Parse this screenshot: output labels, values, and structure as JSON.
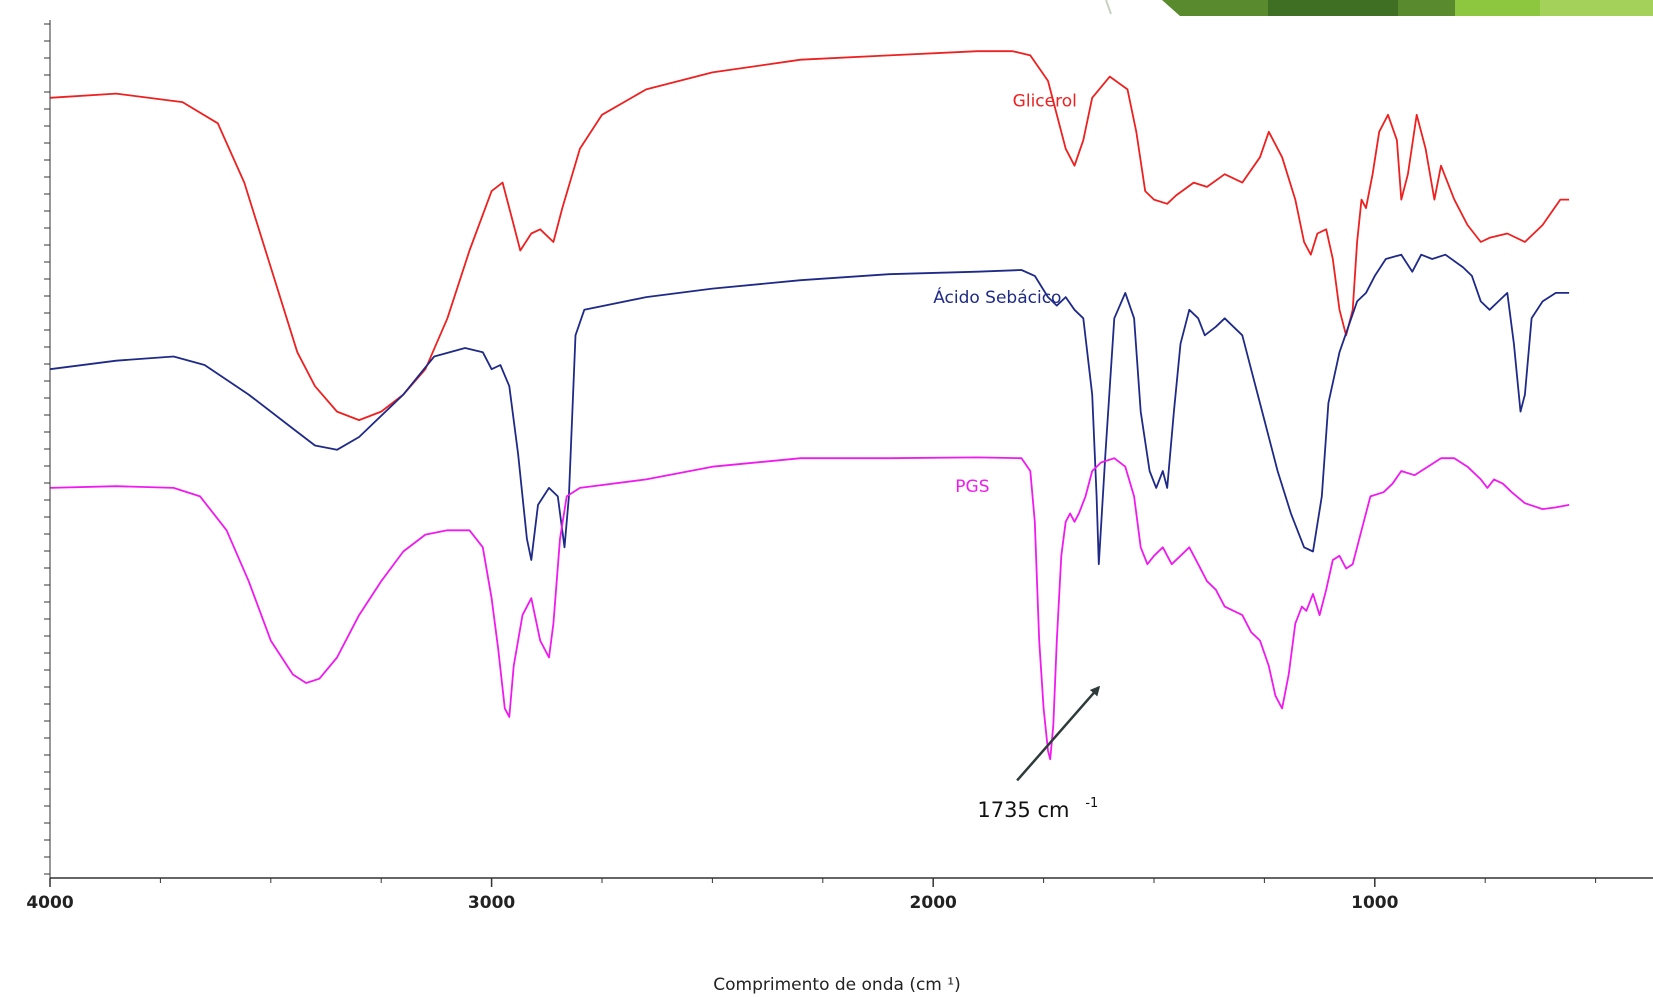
{
  "chart_data": {
    "type": "line",
    "title": "",
    "xlabel": "Comprimento de onda (cm ¹)",
    "ylabel": "",
    "xlim": [
      4000,
      370
    ],
    "x_reversed": true,
    "ylim": [
      0,
      100
    ],
    "grid": false,
    "x_ticks": [
      {
        "value": 4000,
        "label": "4000"
      },
      {
        "value": 3000,
        "label": "3000"
      },
      {
        "value": 2000,
        "label": "2000"
      },
      {
        "value": 1000,
        "label": "1000"
      }
    ],
    "series": [
      {
        "name": "Glicerol",
        "color": "#ee2020",
        "label_at": {
          "x": 1820,
          "y": 91
        },
        "points": [
          [
            4000,
            92
          ],
          [
            3850,
            92.5
          ],
          [
            3700,
            91.5
          ],
          [
            3620,
            89
          ],
          [
            3560,
            82
          ],
          [
            3500,
            72
          ],
          [
            3440,
            62
          ],
          [
            3400,
            58
          ],
          [
            3350,
            55
          ],
          [
            3300,
            54
          ],
          [
            3250,
            55
          ],
          [
            3200,
            57
          ],
          [
            3150,
            60
          ],
          [
            3100,
            66
          ],
          [
            3050,
            74
          ],
          [
            3000,
            81
          ],
          [
            2975,
            82
          ],
          [
            2950,
            77
          ],
          [
            2935,
            74
          ],
          [
            2910,
            76
          ],
          [
            2890,
            76.5
          ],
          [
            2860,
            75
          ],
          [
            2840,
            79
          ],
          [
            2800,
            86
          ],
          [
            2750,
            90
          ],
          [
            2650,
            93
          ],
          [
            2500,
            95
          ],
          [
            2300,
            96.5
          ],
          [
            2100,
            97
          ],
          [
            1900,
            97.5
          ],
          [
            1820,
            97.5
          ],
          [
            1780,
            97
          ],
          [
            1740,
            94
          ],
          [
            1700,
            86
          ],
          [
            1680,
            84
          ],
          [
            1660,
            87
          ],
          [
            1640,
            92
          ],
          [
            1600,
            94.5
          ],
          [
            1560,
            93
          ],
          [
            1540,
            88
          ],
          [
            1520,
            81
          ],
          [
            1500,
            80
          ],
          [
            1470,
            79.5
          ],
          [
            1450,
            80.5
          ],
          [
            1410,
            82
          ],
          [
            1380,
            81.5
          ],
          [
            1340,
            83
          ],
          [
            1300,
            82
          ],
          [
            1260,
            85
          ],
          [
            1240,
            88
          ],
          [
            1210,
            85
          ],
          [
            1180,
            80
          ],
          [
            1160,
            75
          ],
          [
            1145,
            73.5
          ],
          [
            1130,
            76
          ],
          [
            1110,
            76.5
          ],
          [
            1095,
            73
          ],
          [
            1080,
            67
          ],
          [
            1065,
            64
          ],
          [
            1050,
            67
          ],
          [
            1040,
            75
          ],
          [
            1030,
            80
          ],
          [
            1020,
            79
          ],
          [
            1005,
            83
          ],
          [
            990,
            88
          ],
          [
            970,
            90
          ],
          [
            950,
            87
          ],
          [
            940,
            80
          ],
          [
            925,
            83
          ],
          [
            905,
            90
          ],
          [
            885,
            86
          ],
          [
            865,
            80
          ],
          [
            850,
            84
          ],
          [
            820,
            80
          ],
          [
            790,
            77
          ],
          [
            760,
            75
          ],
          [
            740,
            75.5
          ],
          [
            700,
            76
          ],
          [
            660,
            75
          ],
          [
            620,
            77
          ],
          [
            580,
            80
          ],
          [
            560,
            80
          ]
        ]
      },
      {
        "name": "Ácido Sebácico",
        "color": "#1f2a88",
        "label_at": {
          "x": 2000,
          "y": 67.8
        },
        "points": [
          [
            4000,
            60
          ],
          [
            3850,
            61
          ],
          [
            3720,
            61.5
          ],
          [
            3650,
            60.5
          ],
          [
            3550,
            57
          ],
          [
            3450,
            53
          ],
          [
            3400,
            51
          ],
          [
            3350,
            50.5
          ],
          [
            3300,
            52
          ],
          [
            3200,
            57
          ],
          [
            3130,
            61.5
          ],
          [
            3060,
            62.5
          ],
          [
            3020,
            62
          ],
          [
            3000,
            60
          ],
          [
            2980,
            60.5
          ],
          [
            2960,
            58
          ],
          [
            2940,
            50
          ],
          [
            2920,
            40
          ],
          [
            2910,
            37.5
          ],
          [
            2895,
            44
          ],
          [
            2870,
            46
          ],
          [
            2850,
            45
          ],
          [
            2835,
            39
          ],
          [
            2825,
            45
          ],
          [
            2810,
            64
          ],
          [
            2790,
            67
          ],
          [
            2650,
            68.5
          ],
          [
            2500,
            69.5
          ],
          [
            2300,
            70.5
          ],
          [
            2100,
            71.2
          ],
          [
            1900,
            71.5
          ],
          [
            1800,
            71.7
          ],
          [
            1770,
            71
          ],
          [
            1740,
            68.5
          ],
          [
            1720,
            67.5
          ],
          [
            1700,
            68.5
          ],
          [
            1680,
            67
          ],
          [
            1660,
            66
          ],
          [
            1640,
            57
          ],
          [
            1630,
            45
          ],
          [
            1625,
            37
          ],
          [
            1610,
            50
          ],
          [
            1590,
            66
          ],
          [
            1565,
            69
          ],
          [
            1545,
            66
          ],
          [
            1530,
            55
          ],
          [
            1510,
            48
          ],
          [
            1495,
            46
          ],
          [
            1480,
            48
          ],
          [
            1470,
            46
          ],
          [
            1455,
            55
          ],
          [
            1440,
            63
          ],
          [
            1420,
            67
          ],
          [
            1400,
            66
          ],
          [
            1385,
            64
          ],
          [
            1360,
            65
          ],
          [
            1340,
            66
          ],
          [
            1320,
            65
          ],
          [
            1300,
            64
          ],
          [
            1280,
            60
          ],
          [
            1250,
            54
          ],
          [
            1220,
            48
          ],
          [
            1190,
            43
          ],
          [
            1160,
            39
          ],
          [
            1140,
            38.5
          ],
          [
            1120,
            45
          ],
          [
            1105,
            56
          ],
          [
            1080,
            62
          ],
          [
            1060,
            65
          ],
          [
            1040,
            68
          ],
          [
            1020,
            69
          ],
          [
            1000,
            71
          ],
          [
            975,
            73
          ],
          [
            940,
            73.5
          ],
          [
            915,
            71.5
          ],
          [
            895,
            73.5
          ],
          [
            870,
            73
          ],
          [
            840,
            73.5
          ],
          [
            800,
            72
          ],
          [
            780,
            71
          ],
          [
            760,
            68
          ],
          [
            740,
            67
          ],
          [
            720,
            68
          ],
          [
            700,
            69
          ],
          [
            685,
            63
          ],
          [
            670,
            55
          ],
          [
            660,
            57
          ],
          [
            645,
            66
          ],
          [
            620,
            68
          ],
          [
            590,
            69
          ],
          [
            560,
            69
          ]
        ]
      },
      {
        "name": "PGS",
        "color": "#f01af0",
        "label_at": {
          "x": 1950,
          "y": 45.5
        },
        "points": [
          [
            4000,
            46
          ],
          [
            3850,
            46.2
          ],
          [
            3720,
            46
          ],
          [
            3660,
            45
          ],
          [
            3600,
            41
          ],
          [
            3550,
            35
          ],
          [
            3500,
            28
          ],
          [
            3450,
            24
          ],
          [
            3420,
            23
          ],
          [
            3390,
            23.5
          ],
          [
            3350,
            26
          ],
          [
            3300,
            31
          ],
          [
            3250,
            35
          ],
          [
            3200,
            38.5
          ],
          [
            3150,
            40.5
          ],
          [
            3100,
            41
          ],
          [
            3050,
            41
          ],
          [
            3020,
            39
          ],
          [
            3000,
            33
          ],
          [
            2985,
            27
          ],
          [
            2970,
            20
          ],
          [
            2960,
            19
          ],
          [
            2950,
            25
          ],
          [
            2930,
            31
          ],
          [
            2910,
            33
          ],
          [
            2890,
            28
          ],
          [
            2870,
            26
          ],
          [
            2860,
            30
          ],
          [
            2845,
            40
          ],
          [
            2830,
            45
          ],
          [
            2800,
            46
          ],
          [
            2650,
            47
          ],
          [
            2500,
            48.5
          ],
          [
            2300,
            49.5
          ],
          [
            2100,
            49.5
          ],
          [
            1900,
            49.6
          ],
          [
            1800,
            49.5
          ],
          [
            1780,
            48
          ],
          [
            1770,
            42
          ],
          [
            1760,
            28
          ],
          [
            1750,
            20
          ],
          [
            1740,
            15
          ],
          [
            1735,
            14
          ],
          [
            1728,
            18
          ],
          [
            1720,
            28
          ],
          [
            1710,
            38
          ],
          [
            1700,
            42
          ],
          [
            1690,
            43
          ],
          [
            1680,
            42
          ],
          [
            1670,
            43
          ],
          [
            1655,
            45
          ],
          [
            1640,
            48
          ],
          [
            1620,
            49
          ],
          [
            1590,
            49.5
          ],
          [
            1565,
            48.5
          ],
          [
            1545,
            45
          ],
          [
            1530,
            39
          ],
          [
            1515,
            37
          ],
          [
            1500,
            38
          ],
          [
            1480,
            39
          ],
          [
            1460,
            37
          ],
          [
            1440,
            38
          ],
          [
            1420,
            39
          ],
          [
            1400,
            37
          ],
          [
            1380,
            35
          ],
          [
            1360,
            34
          ],
          [
            1340,
            32
          ],
          [
            1300,
            31
          ],
          [
            1280,
            29
          ],
          [
            1260,
            28
          ],
          [
            1240,
            25
          ],
          [
            1225,
            21.5
          ],
          [
            1210,
            20
          ],
          [
            1195,
            24
          ],
          [
            1180,
            30
          ],
          [
            1165,
            32
          ],
          [
            1155,
            31.5
          ],
          [
            1140,
            33.5
          ],
          [
            1125,
            31
          ],
          [
            1110,
            34
          ],
          [
            1095,
            37.5
          ],
          [
            1080,
            38
          ],
          [
            1065,
            36.5
          ],
          [
            1050,
            37
          ],
          [
            1030,
            41
          ],
          [
            1010,
            45
          ],
          [
            980,
            45.5
          ],
          [
            960,
            46.5
          ],
          [
            940,
            48
          ],
          [
            910,
            47.5
          ],
          [
            880,
            48.5
          ],
          [
            850,
            49.5
          ],
          [
            820,
            49.5
          ],
          [
            790,
            48.5
          ],
          [
            760,
            47
          ],
          [
            745,
            46
          ],
          [
            730,
            47
          ],
          [
            710,
            46.5
          ],
          [
            690,
            45.5
          ],
          [
            660,
            44.2
          ],
          [
            620,
            43.5
          ],
          [
            590,
            43.7
          ],
          [
            560,
            44
          ]
        ]
      }
    ],
    "annotations": [
      {
        "text": "1735 cm",
        "sup": "-1",
        "x": 1900,
        "y": 7.2,
        "arrow_from": [
          1810,
          11.5
        ],
        "arrow_to": [
          1625,
          22.5
        ]
      }
    ]
  }
}
